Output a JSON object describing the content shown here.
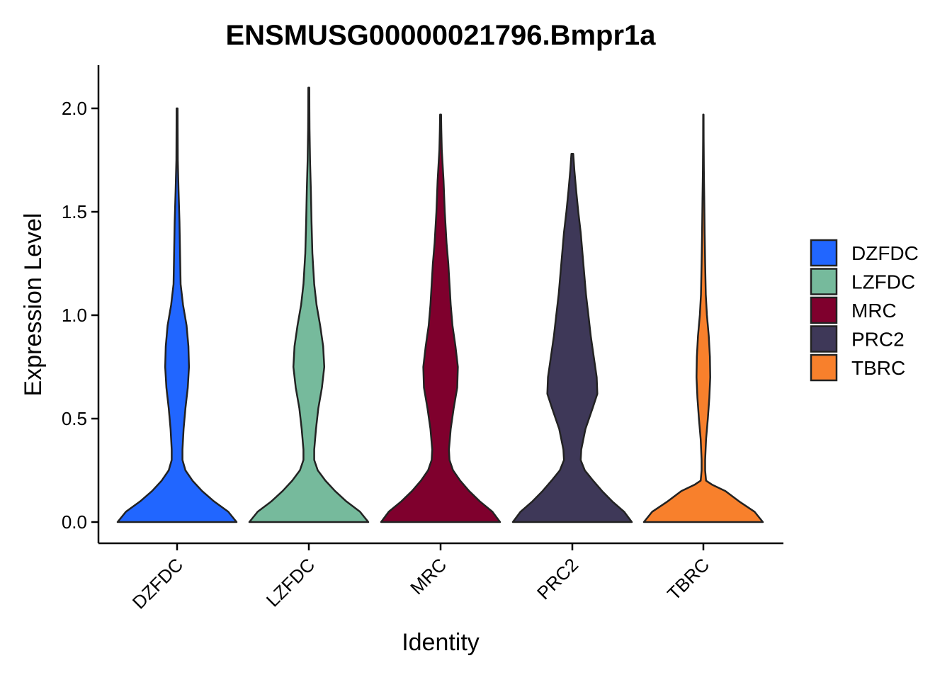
{
  "chart_data": {
    "type": "violin",
    "title": "ENSMUSG00000021796.Bmpr1a",
    "xlabel": "Identity",
    "ylabel": "Expression Level",
    "ylim": [
      -0.1,
      2.22
    ],
    "yticks": [
      0.0,
      0.5,
      1.0,
      1.5,
      2.0
    ],
    "ytick_labels": [
      "0.0",
      "0.5",
      "1.0",
      "1.5",
      "2.0"
    ],
    "categories": [
      "DZFDC",
      "LZFDC",
      "MRC",
      "PRC2",
      "TBRC"
    ],
    "colors": {
      "DZFDC": "#2166FF",
      "LZFDC": "#76BA9C",
      "MRC": "#7F002D",
      "PRC2": "#3E3858",
      "TBRC": "#F8802C"
    },
    "series": [
      {
        "name": "DZFDC",
        "fill": "#2166FF",
        "max": 2.0,
        "density": [
          [
            0.0,
            1.0
          ],
          [
            0.05,
            0.86
          ],
          [
            0.1,
            0.62
          ],
          [
            0.15,
            0.42
          ],
          [
            0.2,
            0.26
          ],
          [
            0.25,
            0.14
          ],
          [
            0.3,
            0.09
          ],
          [
            0.35,
            0.09
          ],
          [
            0.45,
            0.11
          ],
          [
            0.55,
            0.14
          ],
          [
            0.65,
            0.18
          ],
          [
            0.75,
            0.2
          ],
          [
            0.85,
            0.19
          ],
          [
            0.95,
            0.16
          ],
          [
            1.05,
            0.1
          ],
          [
            1.15,
            0.06
          ],
          [
            1.3,
            0.05
          ],
          [
            1.45,
            0.04
          ],
          [
            1.6,
            0.025
          ],
          [
            1.75,
            0.012
          ],
          [
            1.9,
            0.01
          ],
          [
            2.0,
            0.008
          ]
        ]
      },
      {
        "name": "LZFDC",
        "fill": "#76BA9C",
        "max": 2.1,
        "density": [
          [
            0.0,
            1.0
          ],
          [
            0.05,
            0.86
          ],
          [
            0.1,
            0.63
          ],
          [
            0.15,
            0.44
          ],
          [
            0.2,
            0.28
          ],
          [
            0.25,
            0.15
          ],
          [
            0.3,
            0.09
          ],
          [
            0.35,
            0.09
          ],
          [
            0.45,
            0.12
          ],
          [
            0.55,
            0.16
          ],
          [
            0.65,
            0.22
          ],
          [
            0.75,
            0.26
          ],
          [
            0.85,
            0.24
          ],
          [
            0.95,
            0.19
          ],
          [
            1.05,
            0.13
          ],
          [
            1.15,
            0.09
          ],
          [
            1.3,
            0.06
          ],
          [
            1.45,
            0.045
          ],
          [
            1.6,
            0.035
          ],
          [
            1.75,
            0.02
          ],
          [
            1.9,
            0.012
          ],
          [
            2.0,
            0.01
          ],
          [
            2.1,
            0.008
          ]
        ]
      },
      {
        "name": "MRC",
        "fill": "#7F002D",
        "max": 1.97,
        "density": [
          [
            0.0,
            1.0
          ],
          [
            0.05,
            0.87
          ],
          [
            0.1,
            0.66
          ],
          [
            0.15,
            0.48
          ],
          [
            0.2,
            0.33
          ],
          [
            0.25,
            0.21
          ],
          [
            0.3,
            0.15
          ],
          [
            0.35,
            0.14
          ],
          [
            0.45,
            0.17
          ],
          [
            0.55,
            0.22
          ],
          [
            0.65,
            0.28
          ],
          [
            0.75,
            0.29
          ],
          [
            0.85,
            0.25
          ],
          [
            0.95,
            0.2
          ],
          [
            1.05,
            0.17
          ],
          [
            1.15,
            0.15
          ],
          [
            1.25,
            0.13
          ],
          [
            1.35,
            0.1
          ],
          [
            1.5,
            0.07
          ],
          [
            1.65,
            0.05
          ],
          [
            1.8,
            0.02
          ],
          [
            1.9,
            0.012
          ],
          [
            1.97,
            0.008
          ]
        ]
      },
      {
        "name": "PRC2",
        "fill": "#3E3858",
        "max": 1.78,
        "density": [
          [
            0.0,
            1.0
          ],
          [
            0.05,
            0.87
          ],
          [
            0.1,
            0.67
          ],
          [
            0.15,
            0.5
          ],
          [
            0.2,
            0.35
          ],
          [
            0.25,
            0.21
          ],
          [
            0.3,
            0.14
          ],
          [
            0.35,
            0.15
          ],
          [
            0.45,
            0.22
          ],
          [
            0.55,
            0.34
          ],
          [
            0.62,
            0.42
          ],
          [
            0.7,
            0.41
          ],
          [
            0.8,
            0.36
          ],
          [
            0.9,
            0.31
          ],
          [
            1.0,
            0.27
          ],
          [
            1.1,
            0.23
          ],
          [
            1.2,
            0.2
          ],
          [
            1.3,
            0.17
          ],
          [
            1.4,
            0.14
          ],
          [
            1.5,
            0.1
          ],
          [
            1.6,
            0.065
          ],
          [
            1.7,
            0.035
          ],
          [
            1.78,
            0.015
          ]
        ]
      },
      {
        "name": "TBRC",
        "fill": "#F8802C",
        "max": 1.97,
        "density": [
          [
            0.0,
            1.0
          ],
          [
            0.05,
            0.86
          ],
          [
            0.1,
            0.6
          ],
          [
            0.15,
            0.37
          ],
          [
            0.18,
            0.15
          ],
          [
            0.2,
            0.045
          ],
          [
            0.25,
            0.03
          ],
          [
            0.3,
            0.03
          ],
          [
            0.4,
            0.045
          ],
          [
            0.5,
            0.075
          ],
          [
            0.6,
            0.1
          ],
          [
            0.7,
            0.115
          ],
          [
            0.8,
            0.11
          ],
          [
            0.9,
            0.09
          ],
          [
            1.0,
            0.06
          ],
          [
            1.1,
            0.04
          ],
          [
            1.25,
            0.03
          ],
          [
            1.4,
            0.022
          ],
          [
            1.55,
            0.015
          ],
          [
            1.7,
            0.008
          ],
          [
            1.85,
            0.005
          ],
          [
            1.97,
            0.004
          ]
        ]
      }
    ],
    "legend": {
      "placement": "right",
      "entries": [
        "DZFDC",
        "LZFDC",
        "MRC",
        "PRC2",
        "TBRC"
      ]
    },
    "grid": false
  }
}
